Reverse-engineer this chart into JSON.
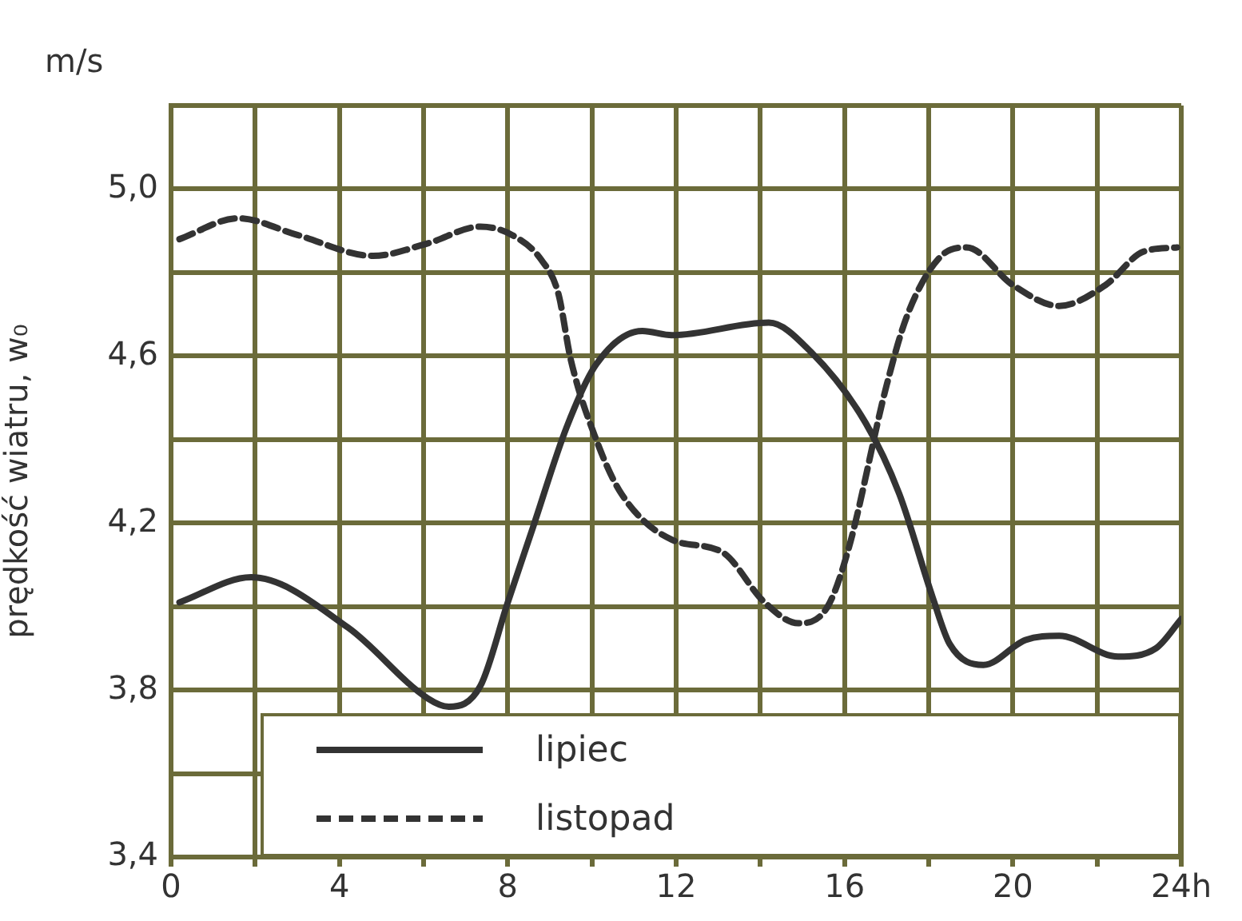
{
  "chart_data": {
    "type": "line",
    "ylabel": "prędkość wiatru, w₀",
    "annotations": [
      "m/s"
    ],
    "xlim": [
      0,
      24
    ],
    "xticks": [
      0,
      {
        "value": 2,
        "label": null
      },
      {
        "value": 4,
        "label": "4"
      },
      {
        "value": 6,
        "label": null
      },
      {
        "value": 8,
        "label": "8"
      },
      {
        "value": 10,
        "label": null
      },
      12,
      {
        "value": 14,
        "label": null
      },
      16,
      {
        "value": 18,
        "label": null
      },
      20,
      {
        "value": 22,
        "label": null
      },
      {
        "value": 24,
        "label": "24h"
      }
    ],
    "ylim": [
      3.4,
      5.2
    ],
    "yticks": [
      {
        "value": 3.4,
        "label": "3,4"
      },
      {
        "value": 3.6,
        "label": null
      },
      {
        "value": 3.8,
        "label": "3,8"
      },
      {
        "value": 4.0,
        "label": null
      },
      {
        "value": 4.2,
        "label": "4,2"
      },
      {
        "value": 4.4,
        "label": null
      },
      {
        "value": 4.6,
        "label": "4,6"
      },
      {
        "value": 4.8,
        "label": null
      },
      {
        "value": 5.0,
        "label": "5,0"
      },
      {
        "value": 5.2,
        "label": null
      }
    ],
    "grid": true,
    "legend": "bottom",
    "marker": "none",
    "series": [
      {
        "name": "lipiec",
        "color": "#333333",
        "line_style": "solid",
        "x": [
          0.2,
          1.9,
          4.2,
          6.1,
          6.6,
          7.35,
          8.0,
          8.6,
          9.4,
          10.1,
          11.2,
          11.9,
          14.2,
          15.2,
          16.5,
          17.3,
          18.1,
          18.5,
          19.3,
          20.3,
          21.1,
          22.5,
          23.4,
          24
        ],
        "values": [
          4.01,
          4.07,
          3.95,
          3.78,
          3.76,
          3.81,
          4.01,
          4.19,
          4.43,
          4.58,
          4.66,
          4.65,
          4.68,
          4.61,
          4.44,
          4.27,
          4.02,
          3.91,
          3.86,
          3.92,
          3.93,
          3.88,
          3.9,
          3.97
        ]
      },
      {
        "name": "listopad",
        "color": "#333333",
        "line_style": "dashed",
        "x": [
          0.2,
          1.6,
          3.0,
          4.8,
          6.1,
          7.35,
          8.1,
          8.8,
          9.2,
          9.5,
          10.1,
          10.7,
          11.9,
          13.1,
          14.1,
          14.9,
          15.6,
          16.1,
          17.0,
          17.5,
          18.3,
          18.9,
          20.0,
          21.1,
          22.2,
          23.1,
          23.9
        ],
        "values": [
          4.88,
          4.93,
          4.89,
          4.84,
          4.87,
          4.91,
          4.89,
          4.83,
          4.75,
          4.59,
          4.4,
          4.27,
          4.16,
          4.13,
          4.01,
          3.96,
          4.0,
          4.14,
          4.53,
          4.7,
          4.84,
          4.86,
          4.77,
          4.72,
          4.77,
          4.85,
          4.86
        ]
      }
    ]
  }
}
